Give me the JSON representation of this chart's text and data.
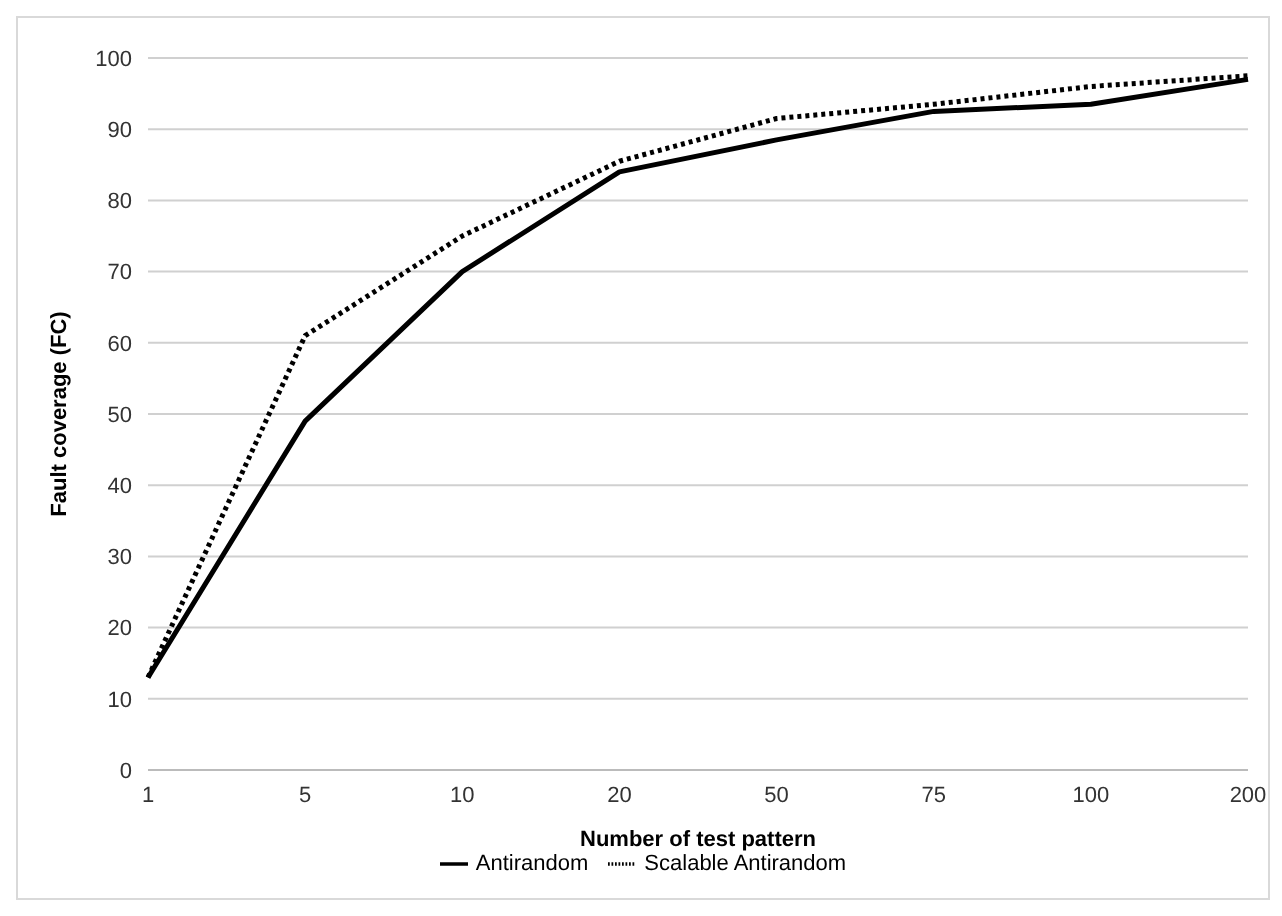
{
  "chart_data": {
    "type": "line",
    "xlabel": "Number of test pattern",
    "ylabel": "Fault coverage (FC)",
    "categories": [
      "1",
      "5",
      "10",
      "20",
      "50",
      "75",
      "100",
      "200"
    ],
    "ylim": [
      0,
      100
    ],
    "yticks": [
      0,
      10,
      20,
      30,
      40,
      50,
      60,
      70,
      80,
      90,
      100
    ],
    "grid": "y",
    "legend": "bottom",
    "marker": "none",
    "series": [
      {
        "name": "Scalable Antirandom",
        "color": "#000000",
        "line_style": "dotted",
        "values": [
          13,
          61,
          75,
          85.5,
          91.5,
          93.5,
          96,
          97.5
        ]
      },
      {
        "name": "Antirandom",
        "color": "#000000",
        "line_style": "solid",
        "values": [
          13,
          49,
          70,
          84,
          88.5,
          92.5,
          93.5,
          97
        ]
      }
    ]
  }
}
